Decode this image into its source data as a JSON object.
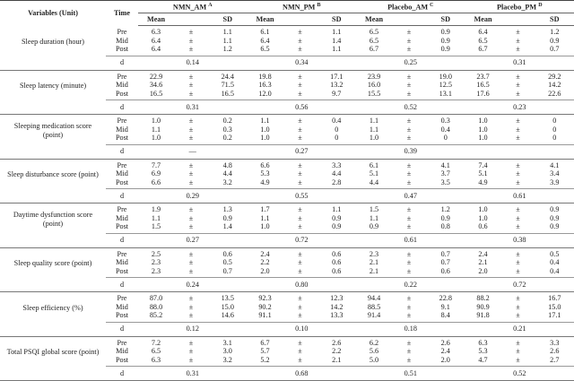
{
  "table": {
    "columns": {
      "variable": "Variables (Unit)",
      "time": "Time",
      "mean": "Mean",
      "sd": "SD"
    },
    "pm": "±",
    "d_label": "d",
    "groups": [
      {
        "name": "NMN_AM",
        "sup": "A"
      },
      {
        "name": "NMN_PM",
        "sup": "B"
      },
      {
        "name": "Placebo_AM",
        "sup": "C"
      },
      {
        "name": "Placebo_PM",
        "sup": "D"
      }
    ],
    "sections": [
      {
        "label": "Sleep duration (hour)",
        "rows": [
          {
            "time": "Pre",
            "cells": [
              [
                "6.3",
                "1.1"
              ],
              [
                "6.1",
                "1.1"
              ],
              [
                "6.5",
                "0.9"
              ],
              [
                "6.4",
                "1.2"
              ]
            ]
          },
          {
            "time": "Mid",
            "cells": [
              [
                "6.4",
                "1.1"
              ],
              [
                "6.4",
                "1.4"
              ],
              [
                "6.5",
                "0.9"
              ],
              [
                "6.5",
                "0.9"
              ]
            ]
          },
          {
            "time": "Post",
            "cells": [
              [
                "6.4",
                "1.2"
              ],
              [
                "6.5",
                "1.1"
              ],
              [
                "6.7",
                "0.9"
              ],
              [
                "6.7",
                "0.7"
              ]
            ]
          }
        ],
        "d": [
          "0.14",
          "0.34",
          "0.25",
          "0.31"
        ]
      },
      {
        "label": "Sleep latency (minute)",
        "rows": [
          {
            "time": "Pre",
            "cells": [
              [
                "22.9",
                "24.4"
              ],
              [
                "19.8",
                "17.1"
              ],
              [
                "23.9",
                "19.0"
              ],
              [
                "23.7",
                "29.2"
              ]
            ]
          },
          {
            "time": "Mid",
            "cells": [
              [
                "34.6",
                "71.5"
              ],
              [
                "16.3",
                "13.2"
              ],
              [
                "16.0",
                "12.5"
              ],
              [
                "16.5",
                "14.2"
              ]
            ]
          },
          {
            "time": "Post",
            "cells": [
              [
                "16.5",
                "16.5"
              ],
              [
                "12.0",
                "9.7"
              ],
              [
                "15.5",
                "13.1"
              ],
              [
                "17.6",
                "22.6"
              ]
            ]
          }
        ],
        "d": [
          "0.31",
          "0.56",
          "0.52",
          "0.23"
        ]
      },
      {
        "label": "Sleeping medication score (point)",
        "rows": [
          {
            "time": "Pre",
            "cells": [
              [
                "1.0",
                "0.2"
              ],
              [
                "1.1",
                "0.4"
              ],
              [
                "1.1",
                "0.3"
              ],
              [
                "1.0",
                "0"
              ]
            ]
          },
          {
            "time": "Mid",
            "cells": [
              [
                "1.1",
                "0.3"
              ],
              [
                "1.0",
                "0"
              ],
              [
                "1.1",
                "0.4"
              ],
              [
                "1.0",
                "0"
              ]
            ]
          },
          {
            "time": "Post",
            "cells": [
              [
                "1.0",
                "0.2"
              ],
              [
                "1.0",
                "0"
              ],
              [
                "1.0",
                "0"
              ],
              [
                "1.0",
                "0"
              ]
            ]
          }
        ],
        "d": [
          "—",
          "0.27",
          "0.39",
          null
        ]
      },
      {
        "label": "Sleep disturbance score (point)",
        "rows": [
          {
            "time": "Pre",
            "cells": [
              [
                "7.7",
                "4.8"
              ],
              [
                "6.6",
                "3.3"
              ],
              [
                "6.1",
                "4.1"
              ],
              [
                "7.4",
                "4.1"
              ]
            ]
          },
          {
            "time": "Mid",
            "cells": [
              [
                "6.9",
                "4.4"
              ],
              [
                "5.3",
                "4.4"
              ],
              [
                "5.1",
                "3.7"
              ],
              [
                "5.1",
                "3.4"
              ]
            ]
          },
          {
            "time": "Post",
            "cells": [
              [
                "6.6",
                "3.2"
              ],
              [
                "4.9",
                "2.8"
              ],
              [
                "4.4",
                "3.5"
              ],
              [
                "4.9",
                "3.9"
              ]
            ]
          }
        ],
        "d": [
          "0.29",
          "0.55",
          "0.47",
          "0.61"
        ]
      },
      {
        "label": "Daytime dysfunction score (point)",
        "rows": [
          {
            "time": "Pre",
            "cells": [
              [
                "1.9",
                "1.3"
              ],
              [
                "1.7",
                "1.1"
              ],
              [
                "1.5",
                "1.2"
              ],
              [
                "1.0",
                "0.9"
              ]
            ]
          },
          {
            "time": "Mid",
            "cells": [
              [
                "1.1",
                "0.9"
              ],
              [
                "1.1",
                "0.9"
              ],
              [
                "1.1",
                "0.9"
              ],
              [
                "1.0",
                "0.9"
              ]
            ]
          },
          {
            "time": "Post",
            "cells": [
              [
                "1.5",
                "1.4"
              ],
              [
                "1.0",
                "0.9"
              ],
              [
                "0.9",
                "0.8"
              ],
              [
                "0.6",
                "0.9"
              ]
            ]
          }
        ],
        "d": [
          "0.27",
          "0.72",
          "0.61",
          "0.38"
        ]
      },
      {
        "label": "Sleep quality score (point)",
        "rows": [
          {
            "time": "Pre",
            "cells": [
              [
                "2.5",
                "0.6"
              ],
              [
                "2.4",
                "0.6"
              ],
              [
                "2.3",
                "0.7"
              ],
              [
                "2.4",
                "0.5"
              ]
            ]
          },
          {
            "time": "Mid",
            "cells": [
              [
                "2.3",
                "0.5"
              ],
              [
                "2.2",
                "0.6"
              ],
              [
                "2.1",
                "0.7"
              ],
              [
                "2.1",
                "0.4"
              ]
            ]
          },
          {
            "time": "Post",
            "cells": [
              [
                "2.3",
                "0.7"
              ],
              [
                "2.0",
                "0.6"
              ],
              [
                "2.1",
                "0.6"
              ],
              [
                "2.0",
                "0.4"
              ]
            ]
          }
        ],
        "d": [
          "0.24",
          "0.80",
          "0.22",
          "0.72"
        ]
      },
      {
        "label": "Sleep efficiency (%)",
        "rows": [
          {
            "time": "Pre",
            "cells": [
              [
                "87.0",
                "13.5"
              ],
              [
                "92.3",
                "12.3"
              ],
              [
                "94.4",
                "22.8"
              ],
              [
                "88.2",
                "16.7"
              ]
            ]
          },
          {
            "time": "Mid",
            "cells": [
              [
                "88.0",
                "15.0"
              ],
              [
                "90.2",
                "14.2"
              ],
              [
                "88.5",
                "9.1"
              ],
              [
                "90.9",
                "15.0"
              ]
            ]
          },
          {
            "time": "Post",
            "cells": [
              [
                "85.2",
                "14.6"
              ],
              [
                "91.1",
                "13.3"
              ],
              [
                "91.4",
                "8.4"
              ],
              [
                "91.8",
                "17.1"
              ]
            ]
          }
        ],
        "d": [
          "0.12",
          "0.10",
          "0.18",
          "0.21"
        ]
      },
      {
        "label": "Total PSQI global score (point)",
        "rows": [
          {
            "time": "Pre",
            "cells": [
              [
                "7.2",
                "3.1"
              ],
              [
                "6.7",
                "2.6"
              ],
              [
                "6.2",
                "2.6"
              ],
              [
                "6.3",
                "3.3"
              ]
            ]
          },
          {
            "time": "Mid",
            "cells": [
              [
                "6.5",
                "3.0"
              ],
              [
                "5.7",
                "2.2"
              ],
              [
                "5.6",
                "2.4"
              ],
              [
                "5.3",
                "2.6"
              ]
            ]
          },
          {
            "time": "Post",
            "cells": [
              [
                "6.3",
                "3.2"
              ],
              [
                "5.2",
                "2.1"
              ],
              [
                "5.0",
                "2.0"
              ],
              [
                "4.7",
                "2.7"
              ]
            ]
          }
        ],
        "d": [
          "0.31",
          "0.68",
          "0.51",
          "0.52"
        ]
      }
    ]
  }
}
